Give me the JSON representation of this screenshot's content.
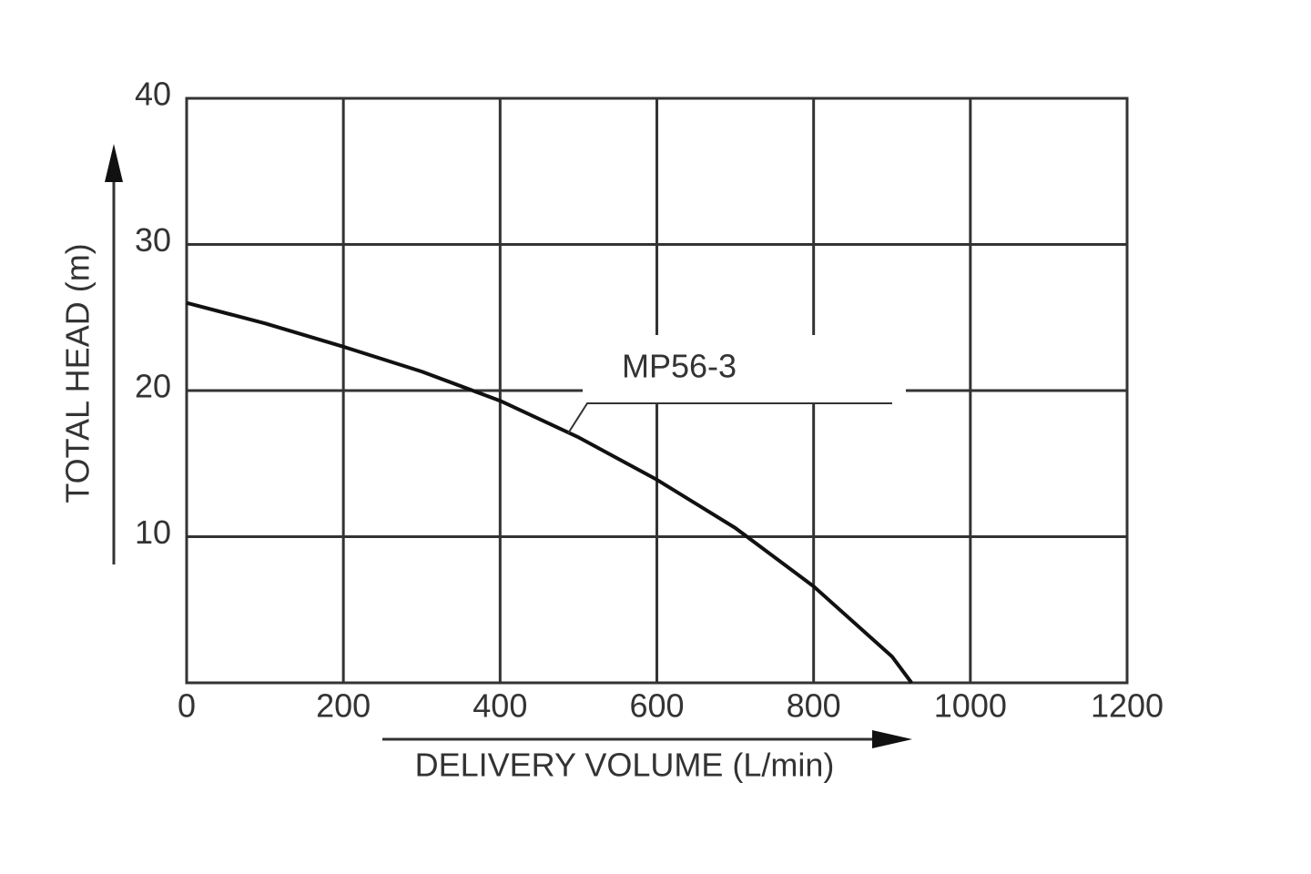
{
  "chart_data": {
    "type": "line",
    "x_label": "DELIVERY VOLUME (L/min)",
    "y_label": "TOTAL  HEAD (m)",
    "x": [
      0,
      100,
      200,
      300,
      400,
      500,
      600,
      700,
      800,
      900,
      925
    ],
    "series": [
      {
        "name": "MP56-3",
        "color": "#111111",
        "values": [
          26,
          24.6,
          23,
          21.3,
          19.3,
          16.8,
          13.9,
          10.6,
          6.6,
          1.8,
          0
        ]
      }
    ],
    "xlim": [
      0,
      1200
    ],
    "xticks": [
      0,
      200,
      400,
      600,
      800,
      1000,
      1200
    ],
    "ylim": [
      0,
      40
    ],
    "yticks": [
      10,
      20,
      30,
      40
    ],
    "grid": true
  }
}
